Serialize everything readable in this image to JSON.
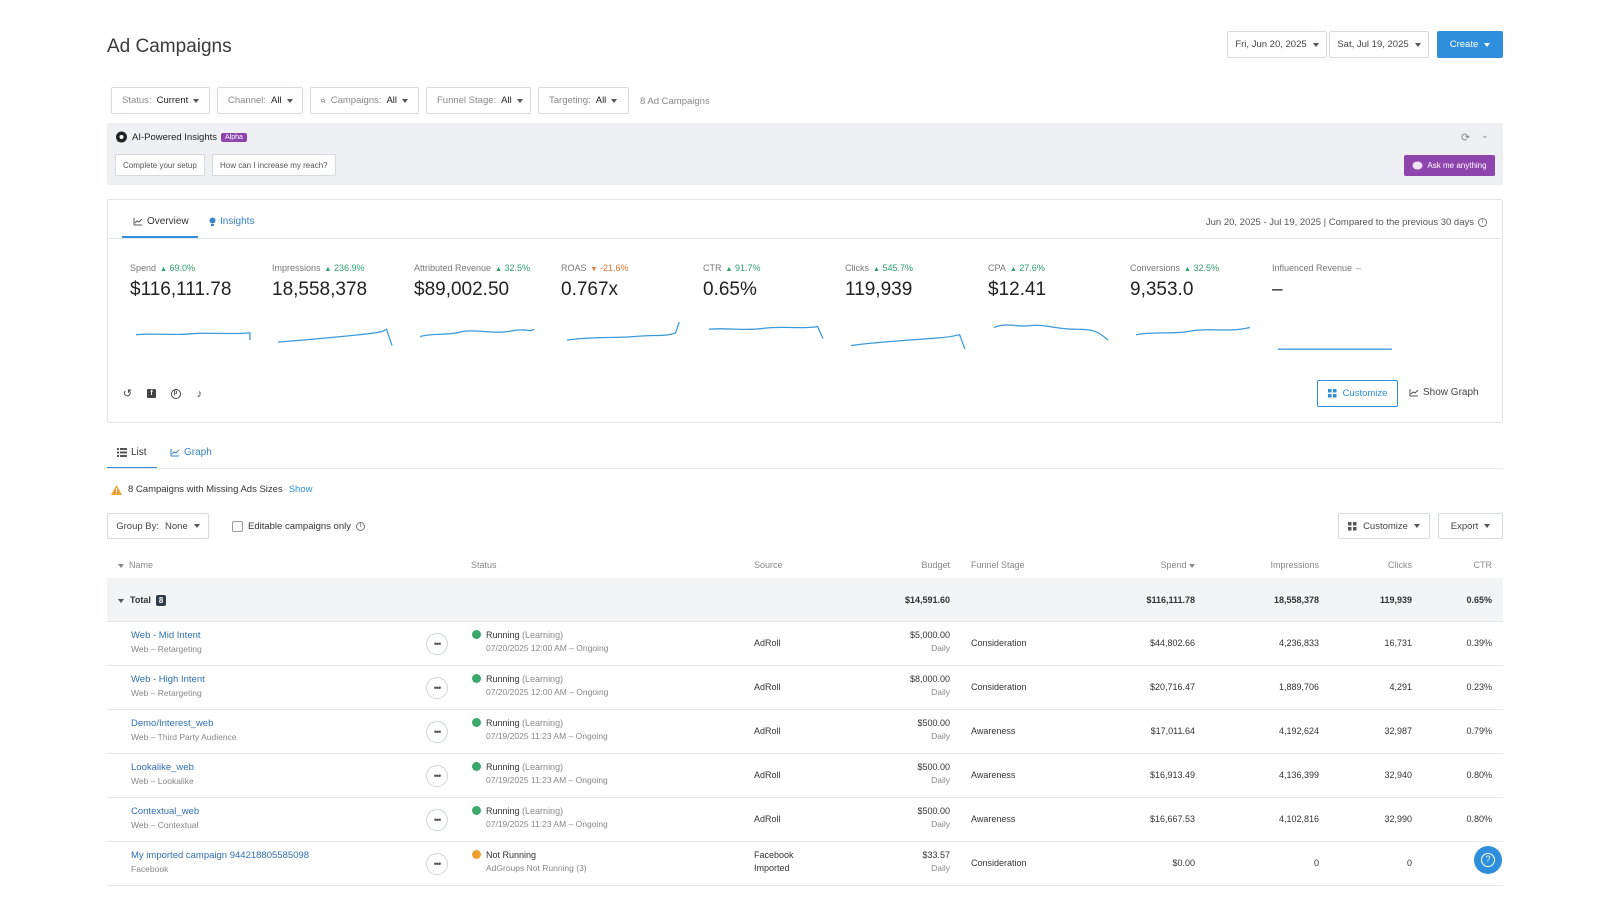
{
  "page": {
    "title": "Ad Campaigns",
    "date_start": "Fri, Jun 20, 2025",
    "date_end": "Sat, Jul 19, 2025",
    "create_label": "Create"
  },
  "filters": {
    "status_label": "Status:",
    "status_value": "Current",
    "channel_label": "Channel:",
    "channel_value": "All",
    "campaigns_label": "Campaigns:",
    "campaigns_value": "All",
    "funnel_label": "Funnel Stage:",
    "funnel_value": "All",
    "targeting_label": "Targeting:",
    "targeting_value": "All",
    "count_text": "8 Ad Campaigns"
  },
  "ai": {
    "title": "AI-Powered Insights",
    "badge": "Alpha",
    "chip1": "Complete your setup",
    "chip2": "How can I increase my reach?",
    "ask_label": "Ask me anything"
  },
  "overview": {
    "tab_overview": "Overview",
    "tab_insights": "Insights",
    "date_range": "Jun 20, 2025 - Jul 19, 2025 | Compared to the previous 30 days",
    "customize_label": "Customize",
    "show_graph_label": "Show Graph",
    "metrics": [
      {
        "label": "Spend",
        "delta": "69.0%",
        "direction": "up",
        "value": "$116,111.78"
      },
      {
        "label": "Impressions",
        "delta": "236.9%",
        "direction": "up",
        "value": "18,558,378"
      },
      {
        "label": "Attributed Revenue",
        "delta": "32.5%",
        "direction": "up",
        "value": "$89,002.50"
      },
      {
        "label": "ROAS",
        "delta": "-21.6%",
        "direction": "down",
        "value": "0.767x"
      },
      {
        "label": "CTR",
        "delta": "91.7%",
        "direction": "up",
        "value": "0.65%"
      },
      {
        "label": "Clicks",
        "delta": "545.7%",
        "direction": "up",
        "value": "119,939"
      },
      {
        "label": "CPA",
        "delta": "27.6%",
        "direction": "up",
        "value": "$12.41"
      },
      {
        "label": "Conversions",
        "delta": "32.5%",
        "direction": "up",
        "value": "9,353.0"
      },
      {
        "label": "Influenced Revenue",
        "delta": "–",
        "direction": "none",
        "value": "–"
      }
    ],
    "spark_color": "#3b9ad9",
    "icons": [
      "adroll-icon",
      "facebook-icon",
      "pinterest-icon",
      "tiktok-icon"
    ]
  },
  "list": {
    "tab_list": "List",
    "tab_graph": "Graph",
    "warning_text": "8 Campaigns with Missing Ads Sizes",
    "show_label": "Show",
    "group_by_label": "Group By:",
    "group_by_value": "None",
    "editable_label": "Editable campaigns only",
    "customize_label": "Customize",
    "export_label": "Export"
  },
  "table": {
    "headers": {
      "name": "Name",
      "status": "Status",
      "source": "Source",
      "budget": "Budget",
      "funnel": "Funnel Stage",
      "spend": "Spend",
      "impressions": "Impressions",
      "clicks": "Clicks",
      "ctr": "CTR"
    },
    "total": {
      "label": "Total",
      "count": "8",
      "budget": "$14,591.60",
      "spend": "$116,111.78",
      "impressions": "18,558,378",
      "clicks": "119,939",
      "ctr": "0.65%"
    },
    "rows": [
      {
        "name": "Web - Mid Intent",
        "sub": "Web – Retargeting",
        "status": "Running",
        "status_note": "(Learning)",
        "status_color": "#3aa76d",
        "status_sub": "07/20/2025 12:00 AM – Ongoing",
        "source": "AdRoll",
        "source_sub": "",
        "budget": "$5,000.00",
        "budget_sub": "Daily",
        "funnel": "Consideration",
        "spend": "$44,802.66",
        "impressions": "4,236,833",
        "clicks": "16,731",
        "ctr": "0.39%"
      },
      {
        "name": "Web - High Intent",
        "sub": "Web – Retargeting",
        "status": "Running",
        "status_note": "(Learning)",
        "status_color": "#3aa76d",
        "status_sub": "07/20/2025 12:00 AM – Ongoing",
        "source": "AdRoll",
        "source_sub": "",
        "budget": "$8,000.00",
        "budget_sub": "Daily",
        "funnel": "Consideration",
        "spend": "$20,716.47",
        "impressions": "1,889,706",
        "clicks": "4,291",
        "ctr": "0.23%"
      },
      {
        "name": "Demo/Interest_web",
        "sub": "Web – Third Party Audience",
        "status": "Running",
        "status_note": "(Learning)",
        "status_color": "#3aa76d",
        "status_sub": "07/19/2025 11:23 AM – Ongoing",
        "source": "AdRoll",
        "source_sub": "",
        "budget": "$500.00",
        "budget_sub": "Daily",
        "funnel": "Awareness",
        "spend": "$17,011.64",
        "impressions": "4,192,624",
        "clicks": "32,987",
        "ctr": "0.79%"
      },
      {
        "name": "Lookalike_web",
        "sub": "Web – Lookalike",
        "status": "Running",
        "status_note": "(Learning)",
        "status_color": "#3aa76d",
        "status_sub": "07/19/2025 11:23 AM – Ongoing",
        "source": "AdRoll",
        "source_sub": "",
        "budget": "$500.00",
        "budget_sub": "Daily",
        "funnel": "Awareness",
        "spend": "$16,913.49",
        "impressions": "4,136,399",
        "clicks": "32,940",
        "ctr": "0.80%"
      },
      {
        "name": "Contextual_web",
        "sub": "Web – Contextual",
        "status": "Running",
        "status_note": "(Learning)",
        "status_color": "#3aa76d",
        "status_sub": "07/19/2025 11:23 AM – Ongoing",
        "source": "AdRoll",
        "source_sub": "",
        "budget": "$500.00",
        "budget_sub": "Daily",
        "funnel": "Awareness",
        "spend": "$16,667.53",
        "impressions": "4,102,816",
        "clicks": "32,990",
        "ctr": "0.80%"
      },
      {
        "name": "My imported campaign 944218805585098",
        "sub": "Facebook",
        "status": "Not Running",
        "status_note": "",
        "status_color": "#f0a030",
        "status_sub": "AdGroups Not Running (3)",
        "source": "Facebook",
        "source_sub": "Imported",
        "budget": "$33.57",
        "budget_sub": "Daily",
        "funnel": "Consideration",
        "spend": "$0.00",
        "impressions": "0",
        "clicks": "0",
        "ctr": ""
      }
    ]
  }
}
